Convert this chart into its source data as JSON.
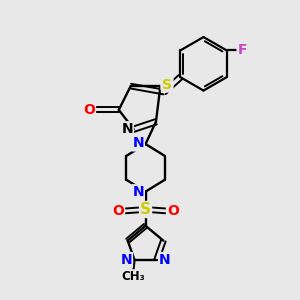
{
  "background_color": "#e8e8e8",
  "atom_colors": {
    "C": "#000000",
    "H": "#4a9999",
    "N": "#0000ff",
    "O": "#ff0000",
    "S": "#cccc00",
    "F": "#cc44cc"
  }
}
